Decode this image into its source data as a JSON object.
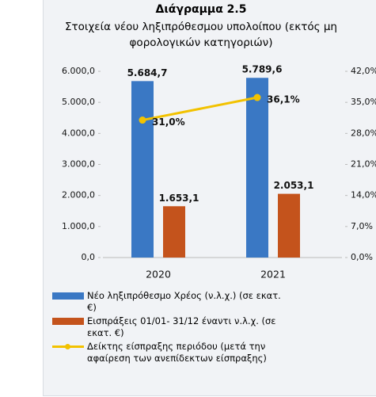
{
  "chart_data": {
    "type": "bar",
    "title": "Διάγραμμα 2.5",
    "subtitle": "Στοιχεία νέου ληξιπρόθεσμου υπολοίπου (εκτός μη φορολογικών κατηγοριών)",
    "categories": [
      "2020",
      "2021"
    ],
    "series": [
      {
        "name": "Νέο ληξιπρόθεσμο Χρέος (ν.λ.χ.) (σε εκατ. €)",
        "type": "bar",
        "color": "#3a78c4",
        "values": [
          5684.7,
          5789.6
        ],
        "value_labels": [
          "5.684,7",
          "5.789,6"
        ]
      },
      {
        "name": "Εισπράξεις 01/01- 31/12 έναντι ν.λ.χ. (σε εκατ. €)",
        "type": "bar",
        "color": "#c4531c",
        "values": [
          1653.1,
          2053.1
        ],
        "value_labels": [
          "1.653,1",
          "2.053,1"
        ]
      },
      {
        "name": "Δείκτης είσπραξης περιόδου (μετά την αφαίρεση των ανεπίδεκτων είσπραξης)",
        "type": "line",
        "axis": "y2",
        "color": "#f2c200",
        "values": [
          31.0,
          36.1
        ],
        "value_labels": [
          "31,0%",
          "36,1%"
        ]
      }
    ],
    "ylim": [
      0,
      6000
    ],
    "yticks": [
      {
        "value": 0,
        "label": "0,0"
      },
      {
        "value": 1000,
        "label": "1.000,0"
      },
      {
        "value": 2000,
        "label": "2.000,0"
      },
      {
        "value": 3000,
        "label": "3.000,0"
      },
      {
        "value": 4000,
        "label": "4.000,0"
      },
      {
        "value": 5000,
        "label": "5.000,0"
      },
      {
        "value": 6000,
        "label": "6.000,0"
      }
    ],
    "y2lim": [
      0,
      42
    ],
    "y2ticks": [
      {
        "value": 0,
        "label": "0,0%"
      },
      {
        "value": 7,
        "label": "7,0%"
      },
      {
        "value": 14,
        "label": "14,0%"
      },
      {
        "value": 21,
        "label": "21,0%"
      },
      {
        "value": 28,
        "label": "28,0%"
      },
      {
        "value": 35,
        "label": "35,0%"
      },
      {
        "value": 42,
        "label": "42,0%"
      }
    ]
  }
}
